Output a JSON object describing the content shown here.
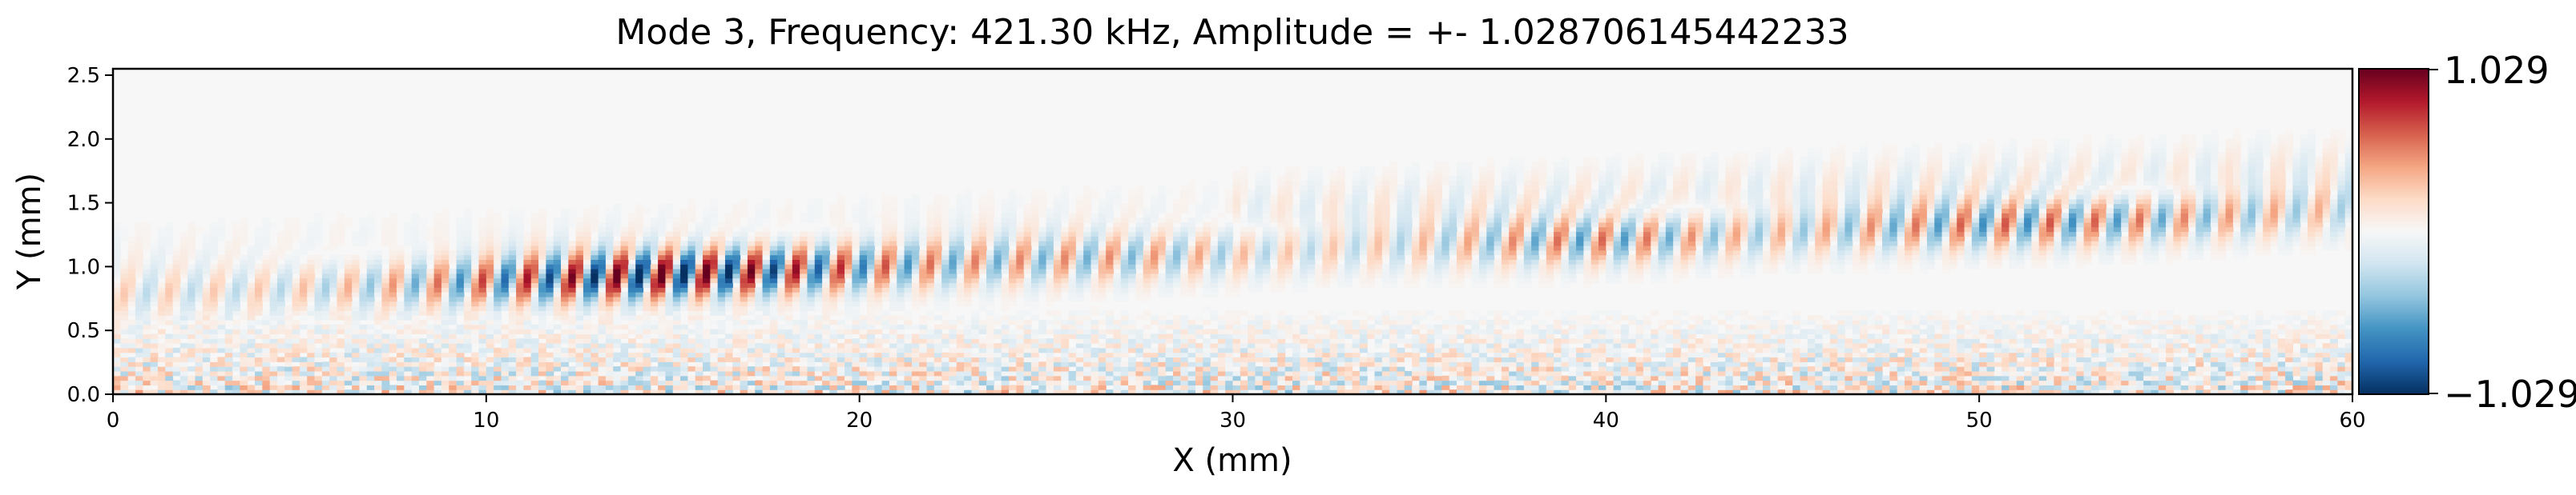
{
  "chart_data": {
    "type": "heatmap",
    "title": "Mode 3, Frequency: 421.30 kHz, Amplitude = +- 1.028706145442233",
    "xlabel": "X (mm)",
    "ylabel": "Y (mm)",
    "xlim": [
      0,
      60
    ],
    "ylim": [
      0,
      2.55
    ],
    "x_ticks": [
      0,
      10,
      20,
      30,
      40,
      50,
      60
    ],
    "x_tick_labels": [
      "0",
      "10",
      "20",
      "30",
      "40",
      "50",
      "60"
    ],
    "y_ticks": [
      0.0,
      0.5,
      1.0,
      1.5,
      2.0,
      2.5
    ],
    "y_tick_labels": [
      "0.0",
      "0.5",
      "1.0",
      "1.5",
      "2.0",
      "2.5"
    ],
    "colormap": "RdBu_r",
    "colorbar": {
      "vmin": -1.029,
      "vmax": 1.029,
      "labels": [
        "1.029",
        "−1.029"
      ]
    },
    "grid": false,
    "legend": "none",
    "colors": {
      "positive": "#67001f",
      "zero": "#f7f7f7",
      "negative": "#053061"
    },
    "field_features": {
      "wave_band_y_mm": [
        0.65,
        1.05
      ],
      "wave_band_y_right_mm": [
        0.8,
        1.45
      ],
      "peak_amplitude_x_mm": [
        12,
        17
      ],
      "noise_layer_y_mm": [
        0.0,
        0.6
      ],
      "quiet_region_y_mm": [
        1.5,
        2.55
      ]
    }
  }
}
